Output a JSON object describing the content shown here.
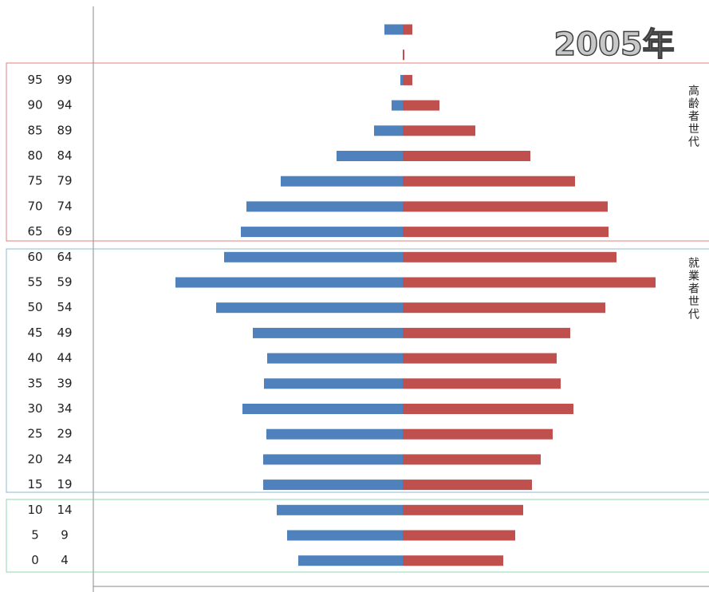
{
  "chart_data": {
    "type": "pyramid",
    "annotations": [
      "2005年",
      "高齢者世代",
      "就業者世代"
    ],
    "categories": [
      null,
      null,
      [
        95,
        99
      ],
      [
        90,
        94
      ],
      [
        85,
        89
      ],
      [
        80,
        84
      ],
      [
        75,
        79
      ],
      [
        70,
        74
      ],
      [
        65,
        69
      ],
      [
        60,
        64
      ],
      [
        55,
        59
      ],
      [
        50,
        54
      ],
      [
        45,
        49
      ],
      [
        40,
        44
      ],
      [
        35,
        39
      ],
      [
        30,
        34
      ],
      [
        25,
        29
      ],
      [
        20,
        24
      ],
      [
        15,
        19
      ],
      [
        10,
        14
      ],
      [
        5,
        9
      ],
      [
        0,
        4
      ]
    ],
    "series": [
      {
        "color": "#4f81bd",
        "values": [
          23,
          0,
          3,
          14,
          36,
          83,
          153,
          196,
          203,
          224,
          285,
          234,
          188,
          170,
          174,
          201,
          171,
          175,
          175,
          158,
          145,
          131
        ]
      },
      {
        "color": "#c0504d",
        "values": [
          12,
          2,
          12,
          46,
          91,
          160,
          216,
          257,
          258,
          268,
          317,
          254,
          210,
          193,
          198,
          214,
          188,
          173,
          162,
          151,
          141,
          126
        ]
      }
    ],
    "xlim": [
      -388,
      384
    ]
  }
}
